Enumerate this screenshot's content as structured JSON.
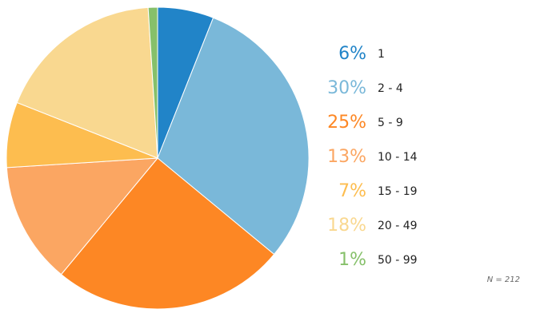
{
  "chart_data": {
    "type": "pie",
    "categories": [
      "1",
      "2 - 4",
      "5 - 9",
      "10 - 14",
      "15 - 19",
      "20 - 49",
      "50 - 99"
    ],
    "values": [
      6,
      30,
      25,
      13,
      7,
      18,
      1
    ],
    "percent_labels": [
      "6%",
      "30%",
      "25%",
      "13%",
      "7%",
      "18%",
      "1%"
    ],
    "colors": [
      "#2184c8",
      "#7ab8d9",
      "#fd8724",
      "#fba662",
      "#fdbd4f",
      "#f9d890",
      "#86c06a"
    ],
    "start_angle_deg": 0,
    "direction": "clockwise",
    "legend_position": "right",
    "note": "N = 212"
  }
}
